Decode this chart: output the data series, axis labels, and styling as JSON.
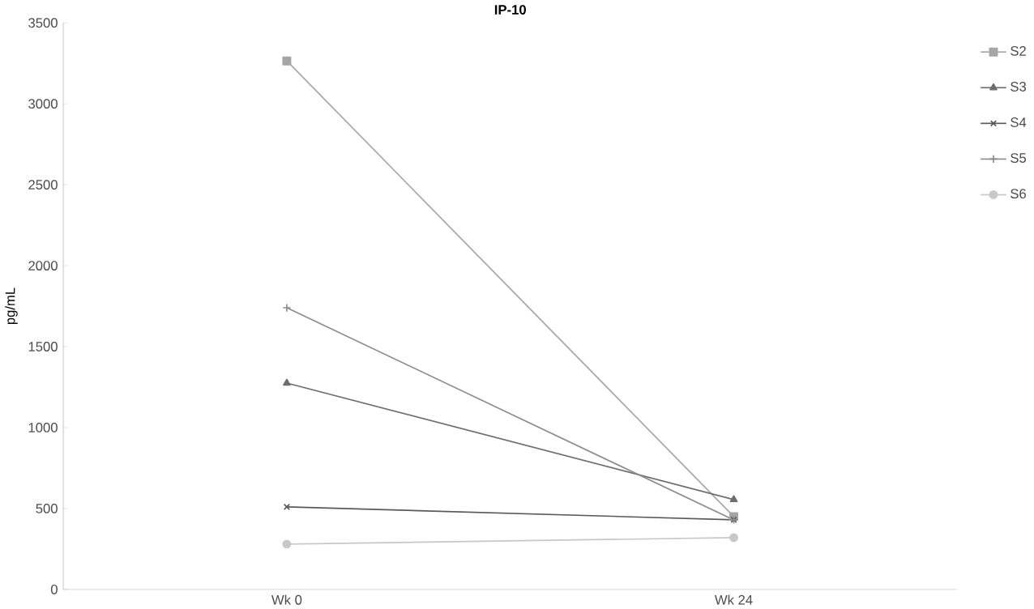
{
  "chart_data": {
    "type": "line",
    "title": "IP-10",
    "ylabel": "pg/mL",
    "categories": [
      "Wk 0",
      "Wk 24"
    ],
    "series": [
      {
        "name": "S2",
        "color": "#a6a6a6",
        "marker": "square",
        "values": [
          3265,
          450
        ]
      },
      {
        "name": "S3",
        "color": "#6e6e6e",
        "marker": "triangle",
        "values": [
          1275,
          555
        ]
      },
      {
        "name": "S4",
        "color": "#595959",
        "marker": "cross",
        "values": [
          510,
          430
        ]
      },
      {
        "name": "S5",
        "color": "#8c8c8c",
        "marker": "plus",
        "values": [
          1740,
          430
        ]
      },
      {
        "name": "S6",
        "color": "#c8c8c8",
        "marker": "circle",
        "values": [
          280,
          320
        ]
      }
    ],
    "ylim": [
      0,
      3500
    ],
    "yticks": [
      0,
      500,
      1000,
      1500,
      2000,
      2500,
      3000,
      3500
    ],
    "legend": "right",
    "grid": false
  }
}
